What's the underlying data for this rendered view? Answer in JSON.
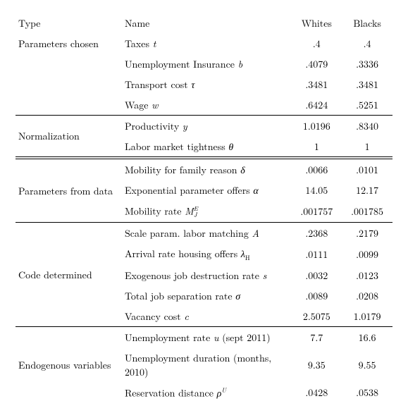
{
  "headers": {
    "type": "Type",
    "name": "Name",
    "whites": "Whites",
    "blacks": "Blacks"
  },
  "sections": {
    "params_chosen": {
      "label": "Parameters chosen",
      "rows": {
        "taxes": {
          "name_prefix": "Taxes ",
          "sym": "t",
          "w": ".4",
          "b": ".4"
        },
        "ui": {
          "name_prefix": "Unemployment Insurance ",
          "sym": "b",
          "w": ".4079",
          "b": ".3336"
        },
        "transport": {
          "name_prefix": "Transport cost ",
          "sym": "τ",
          "w": ".3481",
          "b": ".3481"
        },
        "wage": {
          "name_prefix": "Wage ",
          "sym": "w",
          "w": ".6424",
          "b": ".5251"
        }
      }
    },
    "normalization": {
      "label": "Normalization",
      "rows": {
        "productivity": {
          "name_prefix": "Productivity ",
          "sym": "y",
          "w": "1.0196",
          "b": ".8340"
        },
        "tightness": {
          "name_prefix": "Labor market tightness ",
          "sym": "θ",
          "w": "1",
          "b": "1"
        }
      }
    },
    "params_data": {
      "label": "Parameters from data",
      "rows": {
        "mobility_family": {
          "name_prefix": "Mobility for family reason ",
          "sym": "δ",
          "w": ".0066",
          "b": ".0101"
        },
        "exp_offers": {
          "name_prefix": "Exponential parameter offers ",
          "sym": "α",
          "w": "14.05",
          "b": "12.17"
        },
        "mobility_rate": {
          "name_prefix": "Mobility rate ",
          "sym": "M",
          "sub": "J",
          "sup": "E",
          "w": ".001757",
          "b": ".001785"
        }
      }
    },
    "code_determined": {
      "label": "Code determined",
      "rows": {
        "scale_A": {
          "name_prefix": "Scale param. labor matching ",
          "sym": "A",
          "w": ".2368",
          "b": ".2179"
        },
        "lambda_H": {
          "name_prefix": "Arrival rate housing offers ",
          "sym": "λ",
          "subr": "H",
          "w": ".0111",
          "b": ".0099"
        },
        "exog_s": {
          "name_prefix": "Exogenous job destruction rate ",
          "sym": "s",
          "w": ".0032",
          "b": ".0123"
        },
        "sep_sigma": {
          "name_prefix": "Total job separation rate ",
          "sym": "σ",
          "w": ".0089",
          "b": ".0208"
        },
        "vacancy_c": {
          "name_prefix": "Vacancy cost ",
          "sym": "c",
          "w": "2.5075",
          "b": "1.0179"
        }
      }
    },
    "endogenous": {
      "label": "Endogenous variables",
      "rows": {
        "urate": {
          "name_prefix": "Unemployment rate ",
          "sym": "u",
          "suffix": " (sept 2011)",
          "w": "7.7",
          "b": "16.6"
        },
        "udur": {
          "name_prefix": "Unemployment duration (months, 2010)",
          "w": "9.35",
          "b": "9.55"
        },
        "resdist": {
          "name_prefix": "Reservation distance ",
          "sym": "ρ",
          "sup": "U",
          "w": ".0428",
          "b": ".0538"
        }
      }
    }
  }
}
